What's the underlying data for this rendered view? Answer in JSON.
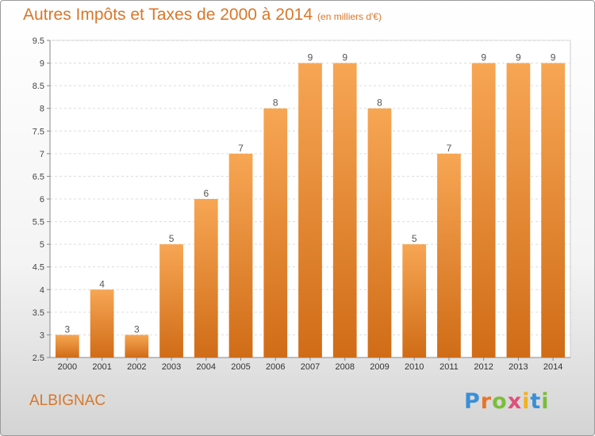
{
  "header": {
    "title": "Autres Impôts et Taxes de 2000 à 2014",
    "unit_note": "(en milliers d'€)"
  },
  "footer": {
    "commune": "ALBIGNAC",
    "logo_letters": [
      "P",
      "r",
      "o",
      "x",
      "i",
      "t",
      "i"
    ]
  },
  "colors": {
    "title": "#d9772a",
    "bar_top": "#f7a654",
    "bar_bottom": "#d06c17",
    "logo": [
      "#3a8fd6",
      "#e8742a",
      "#7bbd3a",
      "#e04f7a",
      "#f2b21c",
      "#3a8fd6",
      "#7bbd3a"
    ]
  },
  "chart_data": {
    "type": "bar",
    "title": "Autres Impôts et Taxes de 2000 à 2014",
    "categories": [
      "2000",
      "2001",
      "2002",
      "2003",
      "2004",
      "2005",
      "2006",
      "2007",
      "2008",
      "2009",
      "2010",
      "2011",
      "2012",
      "2013",
      "2014"
    ],
    "values": [
      3,
      4,
      3,
      5,
      6,
      7,
      8,
      9,
      9,
      8,
      5,
      7,
      9,
      9,
      9
    ],
    "ylim": [
      2.5,
      9.5
    ],
    "yticks": [
      "2.5",
      "3",
      "3.5",
      "4",
      "4.5",
      "5",
      "5.5",
      "6",
      "6.5",
      "7",
      "7.5",
      "8",
      "8.5",
      "9",
      "9.5"
    ],
    "grid": true,
    "data_labels": true
  }
}
